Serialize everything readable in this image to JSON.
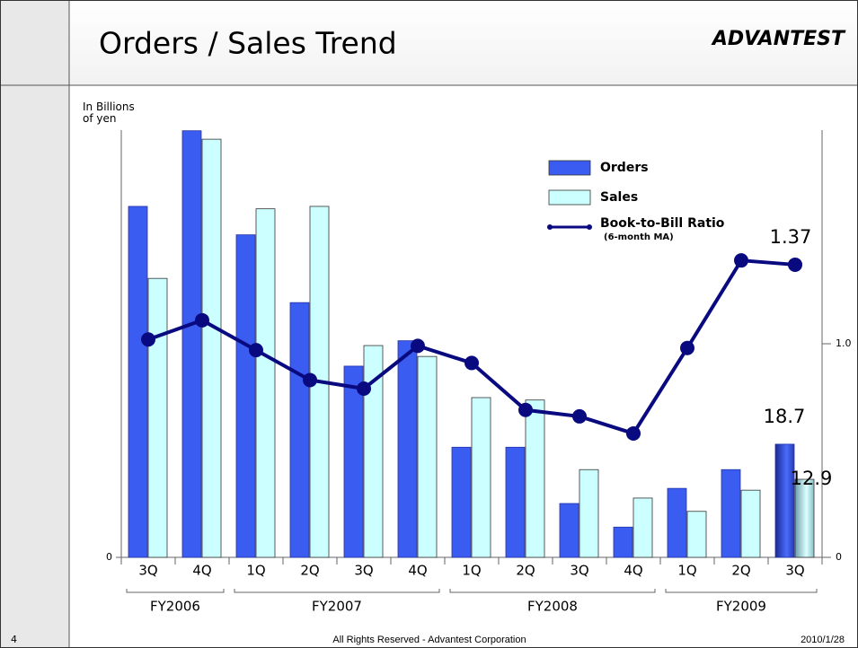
{
  "slide": {
    "y_axis_label": "In Billions of yen",
    "logo": "ADVANTEST",
    "page_number": "4",
    "footer": "All Rights Reserved - Advantest Corporation",
    "date": "2010/1/28"
  },
  "chart_data": {
    "type": "bar",
    "title": "Orders / Sales Trend",
    "categories": [
      "3Q",
      "4Q",
      "1Q",
      "2Q",
      "3Q",
      "4Q",
      "1Q",
      "2Q",
      "3Q",
      "4Q",
      "1Q",
      "2Q",
      "3Q"
    ],
    "x_groups": [
      {
        "label": "FY2006",
        "count": 2
      },
      {
        "label": "FY2007",
        "count": 4
      },
      {
        "label": "FY2008",
        "count": 4
      },
      {
        "label": "FY2009",
        "count": 3
      }
    ],
    "series": [
      {
        "name": "Orders",
        "color": "#3a5cf0",
        "values": [
          58.0,
          70.5,
          53.3,
          42.1,
          31.6,
          35.8,
          18.2,
          18.2,
          8.9,
          5.0,
          11.4,
          14.5,
          18.7
        ]
      },
      {
        "name": "Sales",
        "color": "#ccffff",
        "values": [
          46.1,
          69.1,
          57.6,
          58.0,
          35.0,
          33.2,
          26.4,
          26.0,
          14.5,
          9.8,
          7.6,
          11.1,
          12.9
        ]
      },
      {
        "name": "Book-to-Bill Ratio",
        "subname": "(6-month MA)",
        "color": "#0a0a80",
        "axis": "y2",
        "type": "line",
        "values": [
          1.02,
          1.11,
          0.97,
          0.83,
          0.79,
          0.99,
          0.91,
          0.69,
          0.66,
          0.58,
          0.98,
          1.39,
          1.37
        ]
      }
    ],
    "ylim": [
      0,
      70.6
    ],
    "yticks": [
      0
    ],
    "y2lim": [
      0,
      2.0
    ],
    "y2ticks": [
      0,
      {
        "value": 1.0,
        "label": "1.0"
      }
    ]
  }
}
